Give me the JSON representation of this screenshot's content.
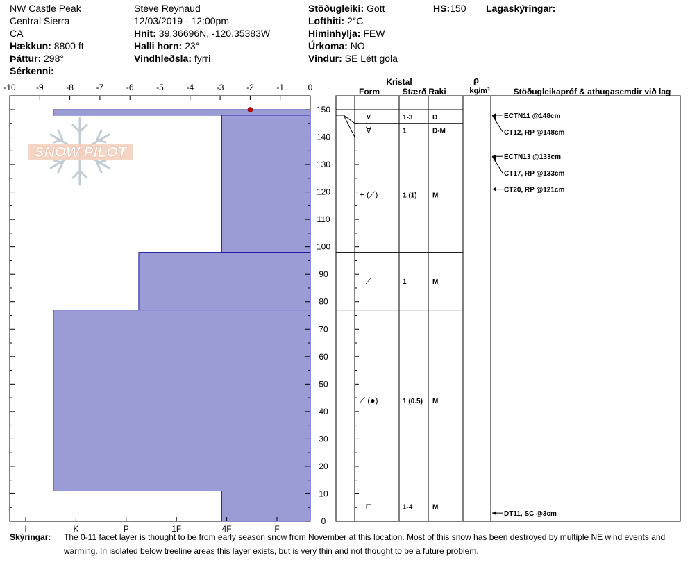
{
  "header": {
    "location": "NW Castle Peak",
    "range": "Central Sierra",
    "state": "CA",
    "elevation_label": "Hækkun:",
    "elevation": "8800 ft",
    "aspect_label": "Þáttur:",
    "aspect": "298°",
    "features_label": "Sérkenni:",
    "features": "",
    "observer": "Steve Reynaud",
    "datetime": "12/03/2019 - 12:00pm",
    "coords_label": "Hnit:",
    "coords": "39.36696N, -120.35383W",
    "slope_label": "Halli horn:",
    "slope": "23°",
    "wind_loading_label": "Vindhleðsla:",
    "wind_loading": "fyrri",
    "stability_label": "Stöðugleiki:",
    "stability": "Gott",
    "air_temp_label": "Lofthiti:",
    "air_temp": "2°C",
    "sky_label": "Himinhylja:",
    "sky": "FEW",
    "precip_label": "Úrkoma:",
    "precip": "NO",
    "wind_label": "Vindur:",
    "wind": "SE Létt gola",
    "hs_label": "HS:",
    "hs": "150",
    "layer_notes_label": "Lagaskýringar:"
  },
  "watermark": "SNOW PILOT",
  "columns": {
    "kristal": "Kristal",
    "form": "Form",
    "size": "Stærð",
    "moisture": "Raki",
    "rho": "ρ",
    "density_unit": "kg/m³",
    "tests": "Stöðugleikapróf & athugasemdir við lag"
  },
  "footer": {
    "label": "Skýringar:",
    "line1": "The 0-11 facet layer is thought to be from early season snow from November at this location.  Most of this snow has been destroyed by multiple NE wind events and",
    "line2": "warming.  In isolated below treeline areas this layer exists, but is very thin and not thought to be a future problem."
  },
  "colors": {
    "hardness_fill": "#9b9bd6",
    "hardness_stroke": "#1a1aa0",
    "temp_point": "#cc0000"
  },
  "chart_data": {
    "type": "snow-profile",
    "temp_axis": {
      "ticks": [
        "-10",
        "-9",
        "-8",
        "-7",
        "-6",
        "-5",
        "-4",
        "-3",
        "-2",
        "-1",
        "0"
      ],
      "range": [
        -10,
        0
      ]
    },
    "hardness_axis": {
      "ticks": [
        "I",
        "K",
        "P",
        "1F",
        "4F",
        "F"
      ],
      "range_index": [
        0,
        5
      ]
    },
    "height_axis": {
      "ticks": [
        "0",
        "10",
        "20",
        "30",
        "40",
        "50",
        "60",
        "70",
        "80",
        "90",
        "100",
        "110",
        "120",
        "130",
        "140",
        "150"
      ],
      "range": [
        0,
        150
      ]
    },
    "temperature_points": [
      {
        "temp": -2.0,
        "height": 150
      }
    ],
    "layers": [
      {
        "top": 150,
        "bottom": 148,
        "hardness": 4.45,
        "form": "∨",
        "size": "1-3",
        "moisture": "D"
      },
      {
        "top": 148,
        "bottom": 98,
        "hardness": 1.1,
        "form": "∀",
        "size": "1",
        "moisture": "D-M"
      },
      {
        "top": 98,
        "bottom": 77,
        "hardness": 2.75,
        "form": "+ (⟋)",
        "size": "1 (1)",
        "moisture": "M"
      },
      {
        "top": 77,
        "bottom": 11,
        "hardness": 4.45,
        "form": "⟋",
        "size": "1",
        "moisture": "M"
      },
      {
        "top": 11,
        "bottom": 0,
        "hardness": 1.1,
        "form": "⟋ (●)",
        "size": "1 (0.5)",
        "moisture": "M"
      }
    ],
    "grain_rows": [
      {
        "top": 150,
        "bottom": 145,
        "form": "∨",
        "size": "1-3",
        "moisture": "D"
      },
      {
        "top": 145,
        "bottom": 140,
        "form": "∀",
        "size": "1",
        "moisture": "D-M"
      },
      {
        "top": 140,
        "bottom": 98,
        "form": "+ (⟋)",
        "size": "1 (1)",
        "moisture": "M"
      },
      {
        "top": 98,
        "bottom": 77,
        "form": "⟋",
        "size": "1",
        "moisture": "M"
      },
      {
        "top": 77,
        "bottom": 11,
        "form": "⟋ (●)",
        "size": "1 (0.5)",
        "moisture": "M"
      },
      {
        "top": 11,
        "bottom": 0,
        "form": "□",
        "size": "1-4",
        "moisture": "M"
      }
    ],
    "tests": [
      {
        "label": "ECTN11 @148cm",
        "height": 148
      },
      {
        "label": "CT12, RP @148cm",
        "height": 148
      },
      {
        "label": "ECTN13 @133cm",
        "height": 133
      },
      {
        "label": "CT17, RP @133cm",
        "height": 133
      },
      {
        "label": "CT20, RP @121cm",
        "height": 121
      },
      {
        "label": "DT11, SC @3cm",
        "height": 3
      }
    ]
  }
}
